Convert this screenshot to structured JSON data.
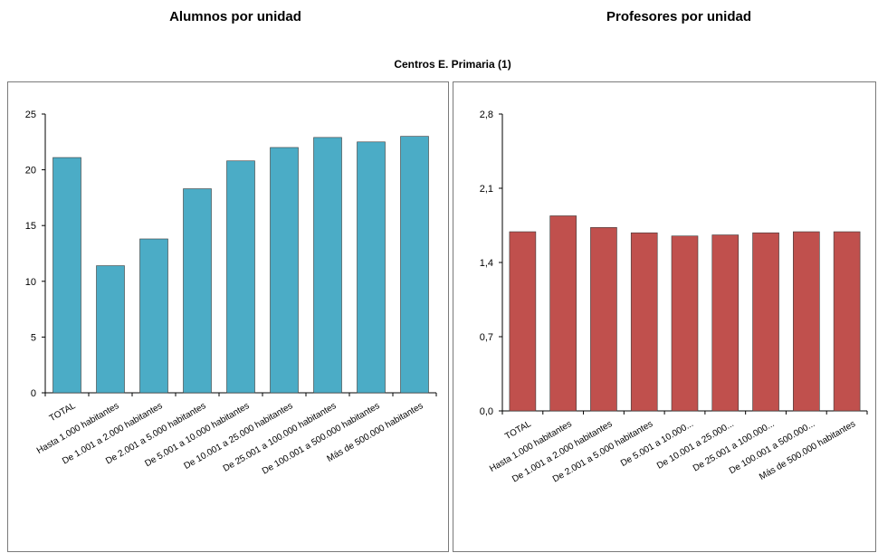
{
  "headings": {
    "left": "Alumnos por unidad",
    "right": "Profesores por unidad",
    "subtitle": "Centros E. Primaria (1)"
  },
  "chart_data": [
    {
      "type": "bar",
      "title": "Alumnos por unidad",
      "categories": [
        "TOTAL",
        "Hasta 1.000 habitantes",
        "De 1.001 a 2.000 habitantes",
        "De 2.001 a 5.000 habitantes",
        "De 5.001 a 10.000 habitantes",
        "De 10.001 a 25.000 habitantes",
        "De 25.001 a 100.000 habitantes",
        "De 100.001 a 500.000 habitantes",
        "Más de 500.000 habitantes"
      ],
      "values": [
        21.1,
        11.4,
        13.8,
        18.3,
        20.8,
        22.0,
        22.9,
        22.5,
        23.0
      ],
      "ylim": [
        0,
        25
      ],
      "yticks": [
        "0",
        "5",
        "10",
        "15",
        "20",
        "25"
      ],
      "ytick_values": [
        0,
        5,
        10,
        15,
        20,
        25
      ],
      "color": "#4bacc6",
      "grid": false
    },
    {
      "type": "bar",
      "title": "Profesores por unidad",
      "categories": [
        "TOTAL",
        "Hasta 1.000 habitantes",
        "De 1.001 a 2.000 habitantes",
        "De 2.001 a 5.000 habitantes",
        "De 5.001 a 10.000...",
        "De 10.001 a 25.000...",
        "De 25.001 a 100.000...",
        "De 100.001 a 500.000...",
        "Más de 500.000 habitantes"
      ],
      "values": [
        1.69,
        1.84,
        1.73,
        1.68,
        1.65,
        1.66,
        1.68,
        1.69,
        1.69
      ],
      "ylim": [
        0,
        2.8
      ],
      "yticks": [
        "0,0",
        "0,7",
        "1,4",
        "2,1",
        "2,8"
      ],
      "ytick_values": [
        0,
        0.7,
        1.4,
        2.1,
        2.8
      ],
      "color": "#c0504d",
      "grid": false
    }
  ]
}
